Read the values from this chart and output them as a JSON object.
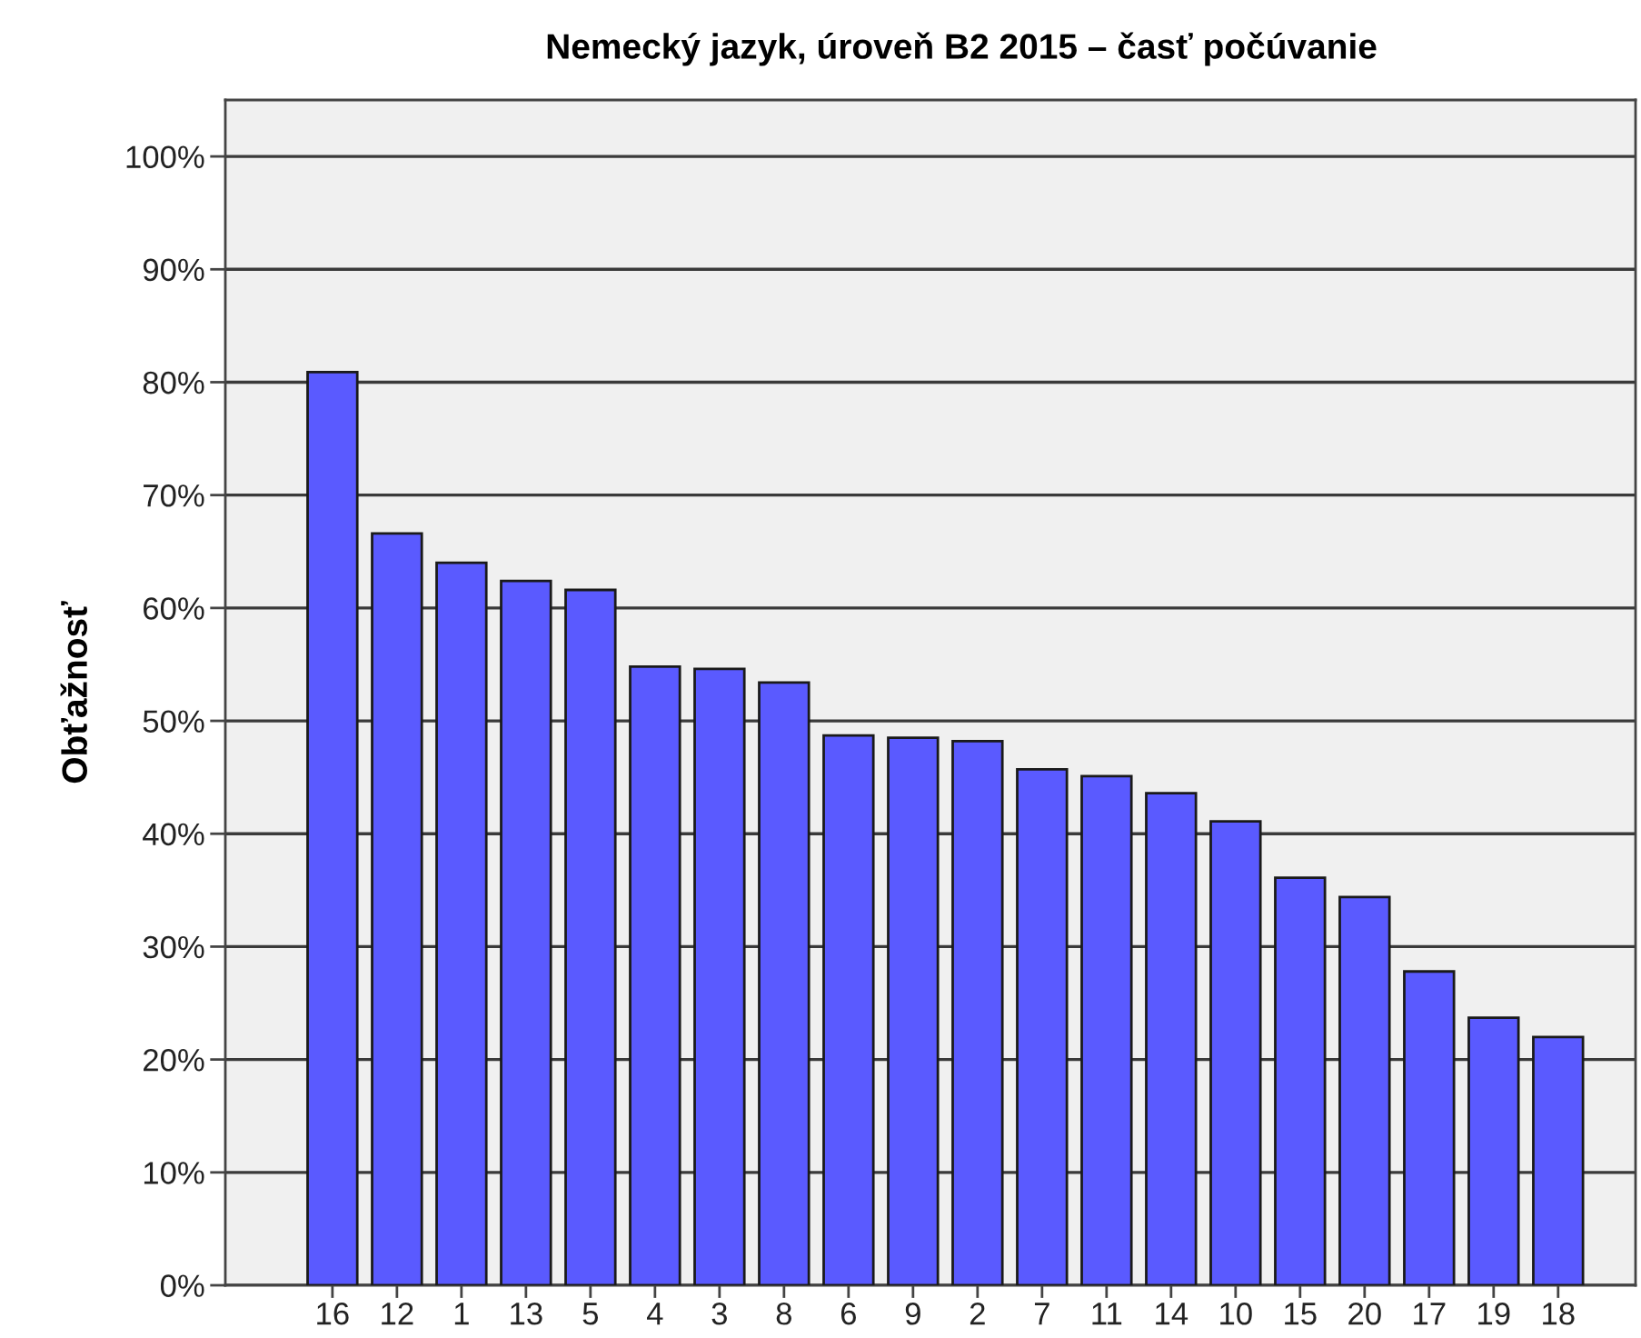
{
  "chart_data": {
    "type": "bar",
    "title": "Nemecký jazyk, úroveň B2 2015 – časť počúvanie",
    "ylabel": "Obťažnosť",
    "categories": [
      "16",
      "12",
      "1",
      "13",
      "5",
      "4",
      "3",
      "8",
      "6",
      "9",
      "2",
      "7",
      "11",
      "14",
      "10",
      "15",
      "20",
      "17",
      "19",
      "18"
    ],
    "values": [
      80.9,
      66.6,
      64.0,
      62.4,
      61.6,
      54.8,
      54.6,
      53.4,
      48.7,
      48.5,
      48.2,
      45.7,
      45.1,
      43.6,
      41.1,
      36.1,
      34.4,
      27.8,
      23.7,
      22.0
    ],
    "color": "#5a5aff",
    "ylim": [
      0,
      105
    ],
    "yticks": [
      {
        "value": 0,
        "label": "0%"
      },
      {
        "value": 10,
        "label": "10%"
      },
      {
        "value": 20,
        "label": "20%"
      },
      {
        "value": 30,
        "label": "30%"
      },
      {
        "value": 40,
        "label": "40%"
      },
      {
        "value": 50,
        "label": "50%"
      },
      {
        "value": 60,
        "label": "60%"
      },
      {
        "value": 70,
        "label": "70%"
      },
      {
        "value": 80,
        "label": "80%"
      },
      {
        "value": 90,
        "label": "90%"
      },
      {
        "value": 100,
        "label": "100%"
      }
    ],
    "grid": "y"
  }
}
